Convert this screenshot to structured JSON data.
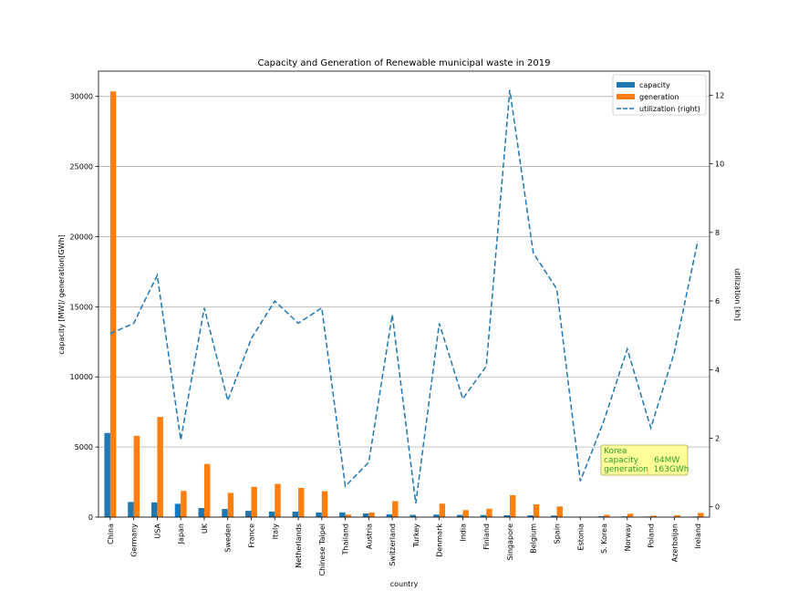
{
  "chart_data": {
    "type": "bar",
    "title": "Capacity and Generation of Renewable municipal waste in 2019",
    "xlabel": "country",
    "ylabel": "capacity [MW]/ generation[GWh]",
    "ylabel_right": "utilization [kh]",
    "ylim": [
      0,
      31800
    ],
    "ylim_right": [
      -0.3,
      12.7
    ],
    "yticks": [
      0,
      5000,
      10000,
      15000,
      20000,
      25000,
      30000
    ],
    "yticks_right": [
      0,
      2,
      4,
      6,
      8,
      10,
      12
    ],
    "grid": "horizontal",
    "legend_position": "top-right",
    "categories": [
      "China",
      "Germany",
      "USA",
      "Japan",
      "UK",
      "Sweden",
      "France",
      "Italy",
      "Netherlands",
      "Chinese Taipei",
      "Thailand",
      "Austria",
      "Switzerland",
      "Turkey",
      "Denmark",
      "India",
      "Finland",
      "Singapore",
      "Belgium",
      "Spain",
      "Estonia",
      "S. Korea",
      "Norway",
      "Poland",
      "Azerbaijan",
      "Ireland"
    ],
    "series": [
      {
        "name": "capacity",
        "color": "#1f77b4",
        "axis": "left",
        "values": [
          6000,
          1080,
          1050,
          950,
          650,
          580,
          450,
          400,
          390,
          330,
          340,
          260,
          200,
          160,
          180,
          160,
          150,
          130,
          130,
          110,
          30,
          64,
          50,
          40,
          30,
          40
        ]
      },
      {
        "name": "generation",
        "color": "#ff7f0e",
        "axis": "left",
        "values": [
          30350,
          5800,
          7150,
          1870,
          3790,
          1730,
          2160,
          2370,
          2080,
          1850,
          180,
          330,
          1140,
          15,
          960,
          500,
          600,
          1560,
          910,
          760,
          25,
          163,
          240,
          100,
          140,
          300
        ]
      },
      {
        "name": "utilization (right)",
        "color": "#1f77b4",
        "axis": "right",
        "style": "dashed",
        "values": [
          5.05,
          5.35,
          6.75,
          1.95,
          5.8,
          3.1,
          4.9,
          6.0,
          5.35,
          5.8,
          0.6,
          1.3,
          5.6,
          0.1,
          5.35,
          3.15,
          4.1,
          12.15,
          7.4,
          6.35,
          0.75,
          2.5,
          4.6,
          2.3,
          4.5,
          7.75
        ]
      }
    ],
    "annotation": {
      "lines": [
        "Korea",
        "capacity      64MW",
        "generation  163GWh"
      ],
      "color": "#2ca02c",
      "background": "#ffff99"
    }
  }
}
